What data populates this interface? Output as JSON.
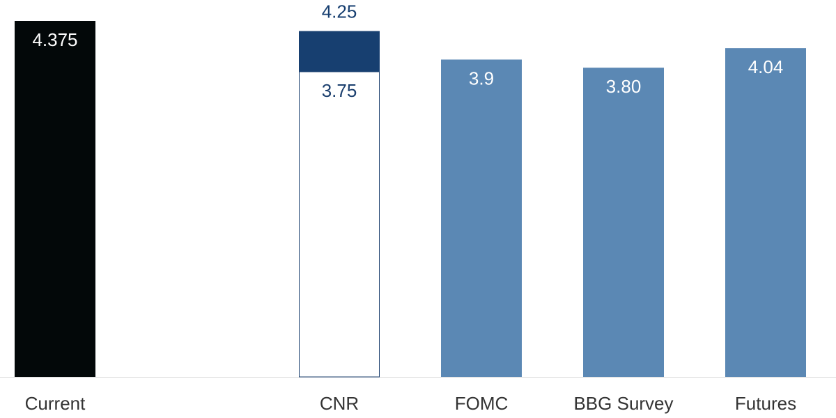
{
  "chart_data": {
    "type": "bar",
    "categories": [
      "Current",
      null,
      "CNR",
      "FOMC",
      "BBG Survey",
      "Futures"
    ],
    "values": [
      4.375,
      null,
      3.75,
      3.9,
      3.8,
      4.04
    ],
    "value_labels": [
      "4.375",
      null,
      "3.75",
      "3.9",
      "3.80",
      "4.04"
    ],
    "high_values": [
      null,
      null,
      4.25,
      null,
      null,
      null
    ],
    "colors": [
      "#030809",
      null,
      "#ffffff",
      "#5b88b4",
      "#5b88b4",
      "#5b88b4"
    ],
    "outline_color": "#1b3f6e",
    "high_color": "#173f70",
    "ylim": [
      0,
      4.375
    ]
  }
}
